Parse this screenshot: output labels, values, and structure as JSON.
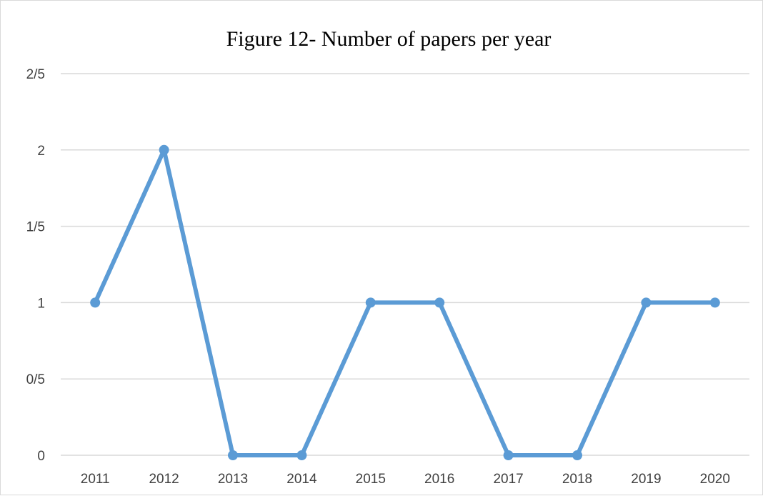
{
  "chart_data": {
    "type": "line",
    "title": "Figure 12- Number of papers per year",
    "xlabel": "",
    "ylabel": "",
    "categories": [
      "2011",
      "2012",
      "2013",
      "2014",
      "2015",
      "2016",
      "2017",
      "2018",
      "2019",
      "2020"
    ],
    "series": [
      {
        "values": [
          1,
          2,
          0,
          0,
          1,
          1,
          0,
          0,
          1,
          1
        ]
      }
    ],
    "y_ticks": [
      {
        "value": 0,
        "label": "0"
      },
      {
        "value": 0.5,
        "label": "0/5"
      },
      {
        "value": 1,
        "label": "1"
      },
      {
        "value": 1.5,
        "label": "1/5"
      },
      {
        "value": 2,
        "label": "2"
      },
      {
        "value": 2.5,
        "label": "2/5"
      }
    ],
    "ylim": [
      0,
      2.5
    ],
    "grid": true,
    "legend": "none",
    "colors": {
      "series": "#5b9bd5",
      "grid": "#d9d9d9",
      "ticks": "#404040",
      "title": "#000000"
    }
  }
}
